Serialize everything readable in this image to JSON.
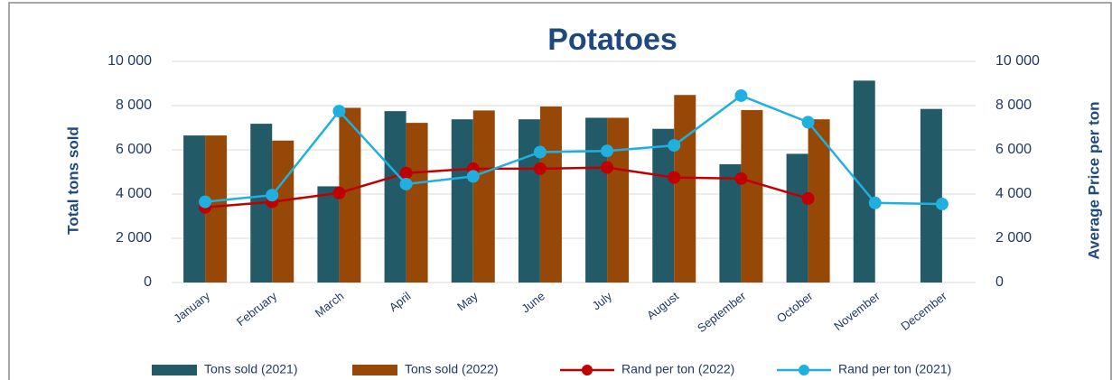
{
  "chart_data": {
    "type": "bar-line",
    "title": "Potatoes",
    "y_label": "Total tons sold",
    "y2_label": "Average Price per ton",
    "categories": [
      "January",
      "February",
      "March",
      "April",
      "May",
      "June",
      "July",
      "August",
      "September",
      "October",
      "November",
      "December"
    ],
    "series": [
      {
        "name": "Tons sold (2021)",
        "type": "bar",
        "color": "#235a68",
        "values": [
          6650,
          7180,
          4350,
          7750,
          7380,
          7380,
          7450,
          6950,
          5350,
          5820,
          9130,
          7850
        ]
      },
      {
        "name": "Tons sold (2022)",
        "type": "bar",
        "color": "#974806",
        "values": [
          6650,
          6420,
          7900,
          7220,
          7780,
          7960,
          7450,
          8480,
          7800,
          7380,
          null,
          null
        ]
      },
      {
        "name": "Rand per ton (2022)",
        "type": "line",
        "axis": "y2",
        "color": "#c00000",
        "values": [
          3400,
          3650,
          4050,
          4950,
          5150,
          5150,
          5200,
          4750,
          4700,
          3800,
          null,
          null
        ]
      },
      {
        "name": "Rand per ton (2021)",
        "type": "line",
        "axis": "y2",
        "color": "#1fb0e0",
        "values": [
          3650,
          3950,
          7750,
          4450,
          4800,
          5900,
          5950,
          6200,
          8450,
          7250,
          3600,
          3550
        ]
      }
    ],
    "ylim": [
      0,
      10000
    ],
    "yticks": [
      0,
      {
        "value": 2000,
        "label": "2 000"
      },
      {
        "value": 4000,
        "label": "4 000"
      },
      {
        "value": 6000,
        "label": "6 000"
      },
      {
        "value": 8000,
        "label": "8 000"
      },
      {
        "value": 10000,
        "label": "10 000"
      }
    ],
    "y2lim": [
      0,
      10000
    ],
    "y2ticks": [
      0,
      {
        "value": 2000,
        "label": "2 000"
      },
      {
        "value": 4000,
        "label": "4 000"
      },
      {
        "value": 6000,
        "label": "6 000"
      },
      {
        "value": 8000,
        "label": "8 000"
      },
      {
        "value": 10000,
        "label": "10 000"
      }
    ],
    "grid": true,
    "legend": "bottom"
  }
}
